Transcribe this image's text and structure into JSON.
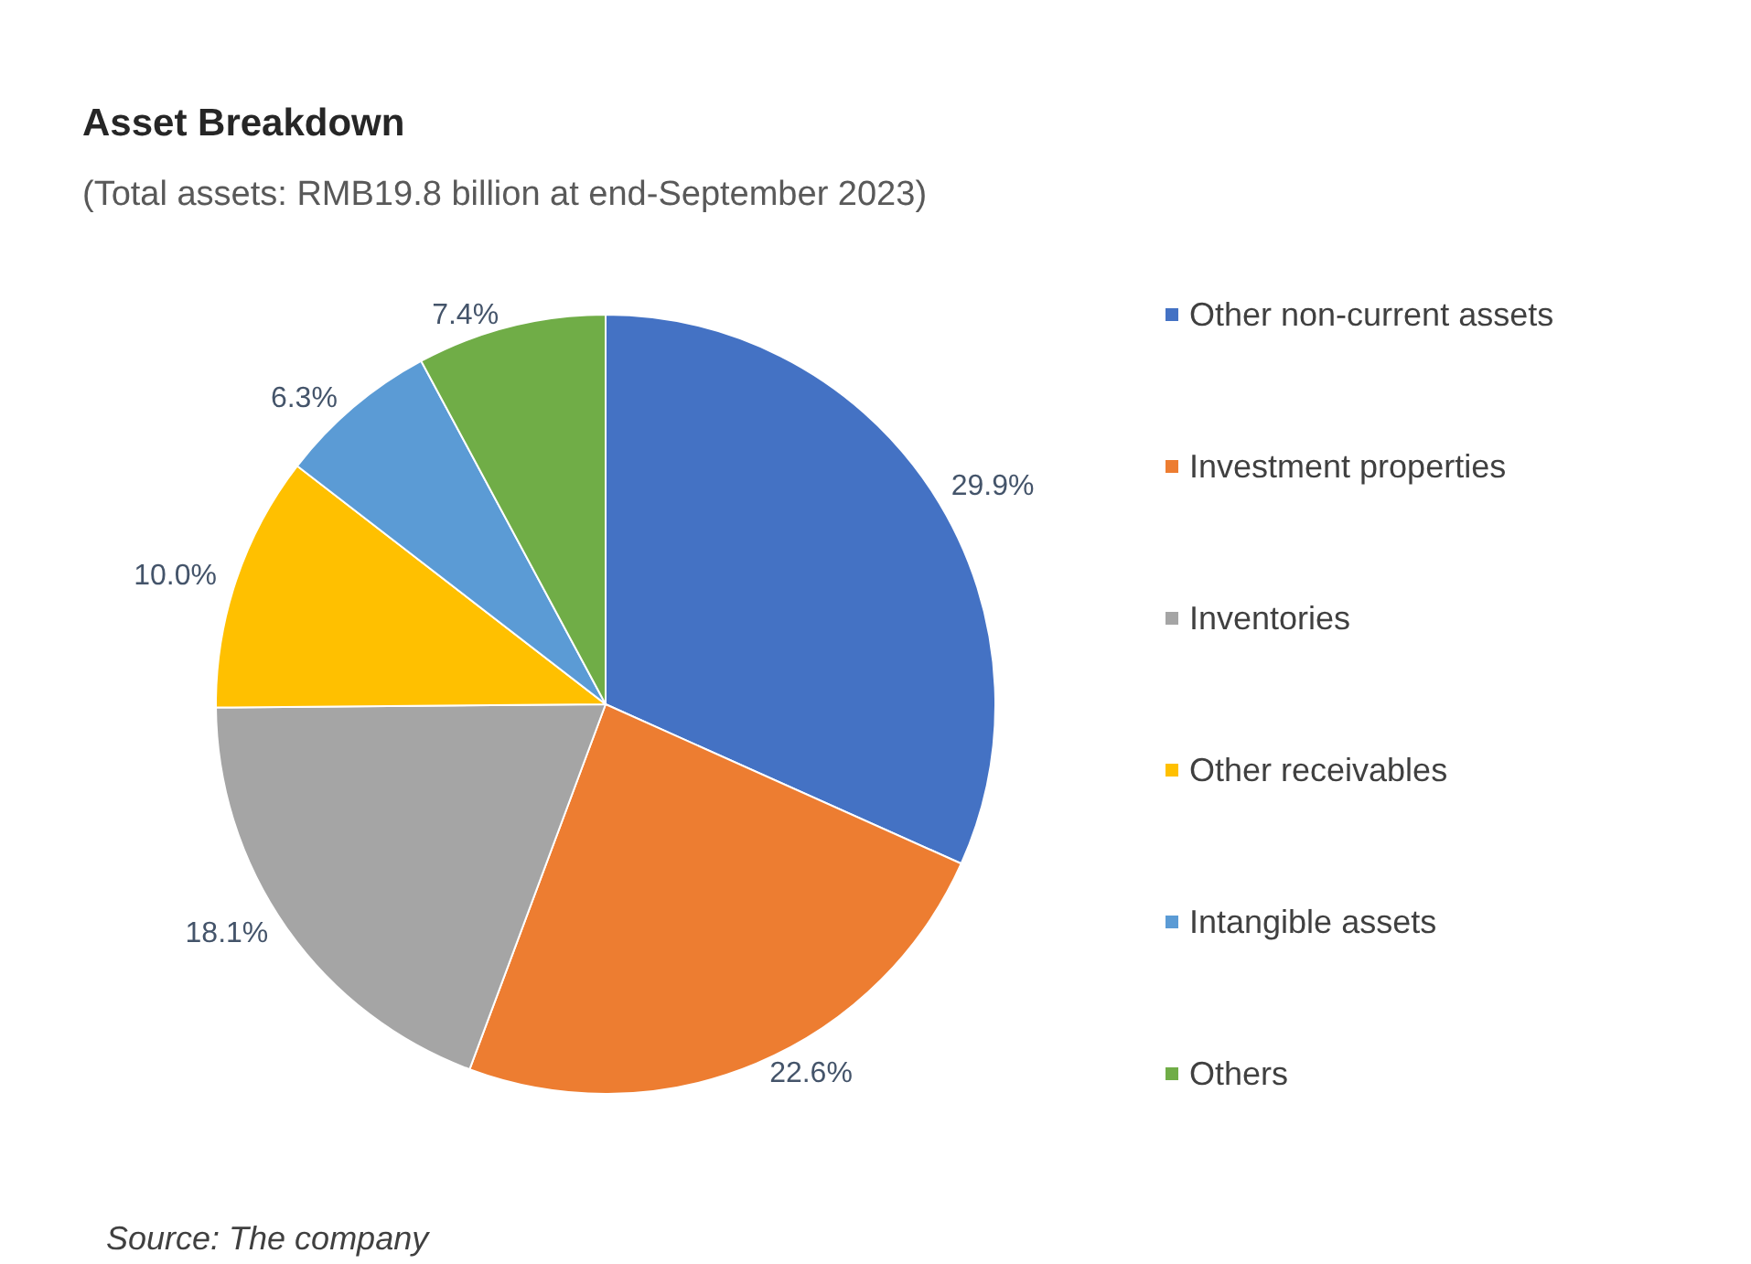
{
  "chart_data": {
    "type": "pie",
    "title": "Asset Breakdown",
    "subtitle": "(Total assets: RMB19.8 billion at end-September 2023)",
    "categories": [
      "Other non-current assets",
      "Investment properties",
      "Inventories",
      "Other receivables",
      "Intangible assets",
      "Others"
    ],
    "values": [
      29.9,
      22.6,
      18.1,
      10.0,
      6.3,
      7.4
    ],
    "value_labels": [
      "29.9%",
      "22.6%",
      "18.1%",
      "10.0%",
      "6.3%",
      "7.4%"
    ],
    "colors": [
      "#4472c4",
      "#ed7d31",
      "#a5a5a5",
      "#ffc000",
      "#5b9bd5",
      "#70ad47"
    ],
    "legend": "right",
    "annotations": [
      "Source: The company"
    ]
  }
}
